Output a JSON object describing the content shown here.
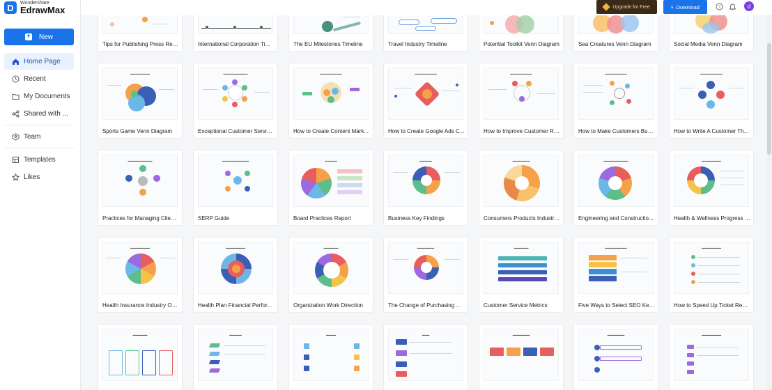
{
  "brand": {
    "small": "Wondershare",
    "name": "EdrawMax",
    "mark": "D"
  },
  "sidebar": {
    "new_label": "New",
    "items": [
      {
        "label": "Home Page",
        "icon": "home-icon",
        "active": true
      },
      {
        "label": "Recent",
        "icon": "clock-icon"
      },
      {
        "label": "My Documents",
        "icon": "folder-icon"
      },
      {
        "label": "Shared with ...",
        "icon": "share-icon"
      },
      {
        "label": "Team",
        "icon": "team-icon"
      },
      {
        "label": "Templates",
        "icon": "templates-icon"
      },
      {
        "label": "Likes",
        "icon": "star-icon"
      }
    ]
  },
  "topbar": {
    "upgrade_label": "Upgrade for Free",
    "download_label": "Download",
    "avatar_letter": "d"
  },
  "templates": {
    "row0": [
      "Tips for Publishing Press Rele...",
      "International Corporation Ti...",
      "The EU Milestones Timeline",
      "Travel Industry Timeline",
      "Potential Toolkit Venn Diagram",
      "Sea Creatures Venn Diagram",
      "Social Media Venn Diagram"
    ],
    "row1": [
      "Sports Game Venn Diagram",
      "Exceptional Customer Service...",
      "How to Create Content Mark...",
      "How to Create Google Ads C...",
      "How to Improve Customer Re...",
      "How to Make Customers Busi...",
      "How to Write A Customer Th..."
    ],
    "row2": [
      "Practices for Managing Client...",
      "SERP Guide",
      "Board Practices Report",
      "Business Key Findings",
      "Consumers Products Industry...",
      "Engineering and Constructio...",
      "Health & Wellness Progress R..."
    ],
    "row3": [
      "Health Insurance Industry Ou...",
      "Health Plan Financial Perform...",
      "Organization Work Direction",
      "The Change of Purchasing Be...",
      "Customer Service Metrics",
      "Five Ways to Select SEO Key...",
      "How to Speed Up Ticket Reso..."
    ],
    "row4": [
      "",
      "",
      "",
      "",
      "",
      "",
      ""
    ]
  },
  "colors": {
    "accent": "#1a73e8",
    "upgrade_bg": "#3a2a18"
  }
}
